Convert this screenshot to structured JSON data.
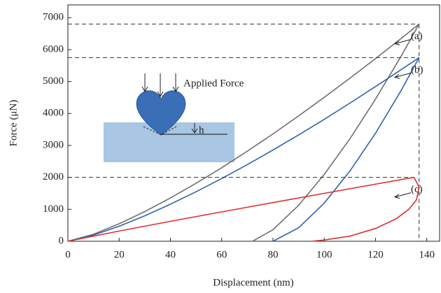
{
  "chart_data": {
    "type": "line",
    "x_label": "Displacement (nm)",
    "y_label": "Force (μN)",
    "xlim": [
      0,
      145
    ],
    "ylim": [
      0,
      7400
    ],
    "xticks": [
      0,
      20,
      40,
      60,
      80,
      100,
      120,
      140
    ],
    "yticks": [
      0,
      1000,
      2000,
      3000,
      4000,
      5000,
      6000,
      7000
    ],
    "inset_label": "Applied Force",
    "inset_depth_label": "h",
    "series": [
      {
        "name": "(a)",
        "color": "#707070",
        "x": [
          0,
          10,
          20,
          30,
          40,
          50,
          60,
          70,
          80,
          90,
          100,
          110,
          120,
          130,
          137,
          130,
          120,
          110,
          100,
          90,
          80,
          72
        ],
        "values": [
          0,
          220,
          547,
          930,
          1355,
          1816,
          2300,
          2820,
          3360,
          3925,
          4505,
          5104,
          5718,
          6350,
          6800,
          5797,
          4449,
          3206,
          2093,
          1125,
          362,
          0
        ]
      },
      {
        "name": "(b)",
        "color": "#2f63b0",
        "x": [
          0,
          10,
          20,
          30,
          40,
          50,
          60,
          70,
          80,
          90,
          100,
          110,
          120,
          130,
          137,
          130,
          120,
          110,
          100,
          90,
          80
        ],
        "values": [
          0,
          192,
          471,
          796,
          1160,
          1551,
          1964,
          2400,
          2858,
          3331,
          3815,
          4323,
          4842,
          5373,
          5750,
          4723,
          3381,
          2195,
          1196,
          422,
          0
        ]
      },
      {
        "name": "(c)",
        "color": "#e03030",
        "x": [
          0,
          20,
          40,
          60,
          80,
          100,
          120,
          130,
          135,
          137,
          136,
          133,
          128,
          120,
          110,
          100,
          95
        ],
        "values": [
          0,
          320,
          623,
          920,
          1210,
          1500,
          1786,
          1930,
          2000,
          1700,
          1300,
          1000,
          700,
          400,
          160,
          40,
          0
        ]
      }
    ]
  }
}
